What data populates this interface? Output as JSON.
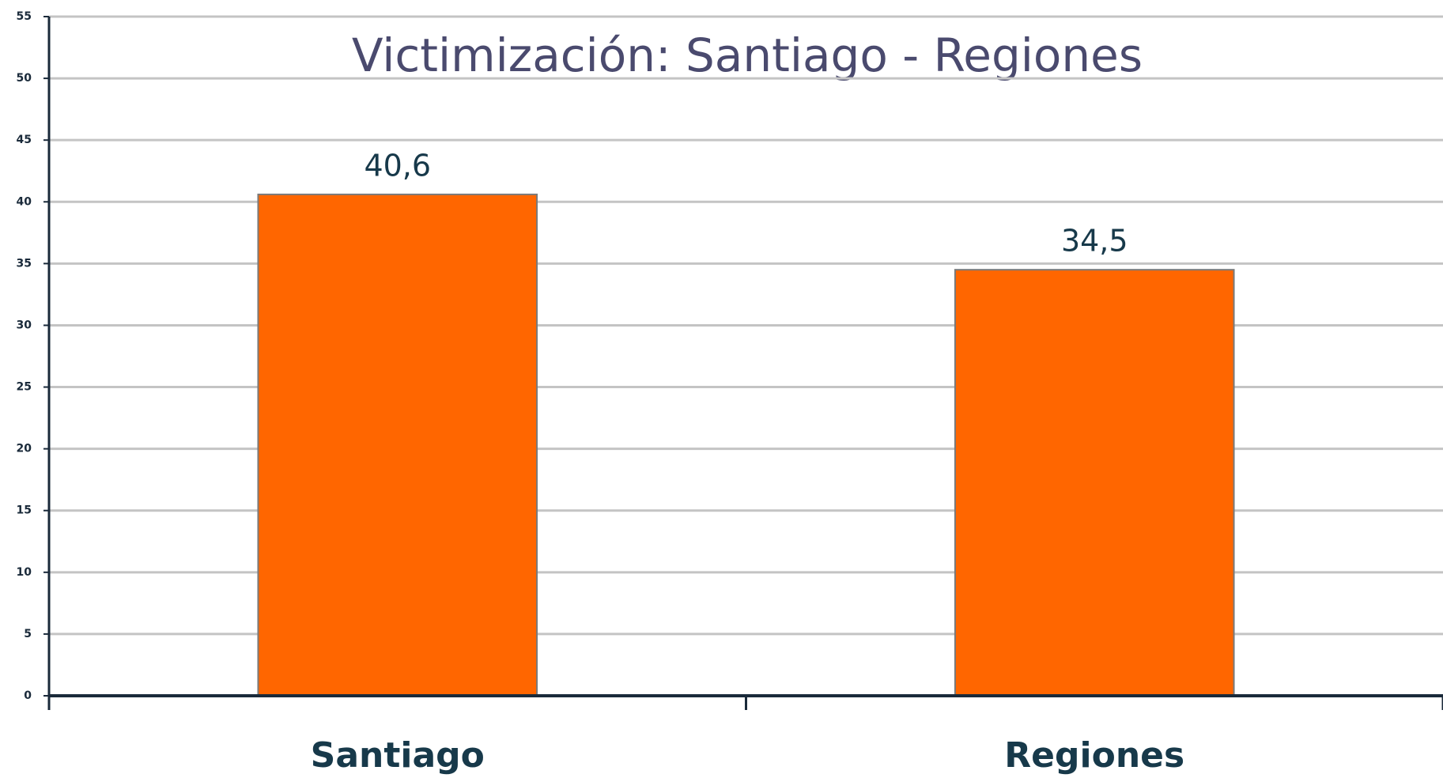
{
  "chart_data": {
    "type": "bar",
    "title": "Victimización: Santiago - Regiones",
    "categories": [
      "Santiago",
      "Regiones"
    ],
    "values": [
      40.6,
      34.5
    ],
    "value_labels": [
      "40,6",
      "34,5"
    ],
    "color": "#ff6600",
    "ylim": [
      0,
      55
    ],
    "yticks": [
      0,
      5,
      10,
      15,
      20,
      25,
      30,
      35,
      40,
      45,
      50,
      55
    ],
    "grid": true
  }
}
